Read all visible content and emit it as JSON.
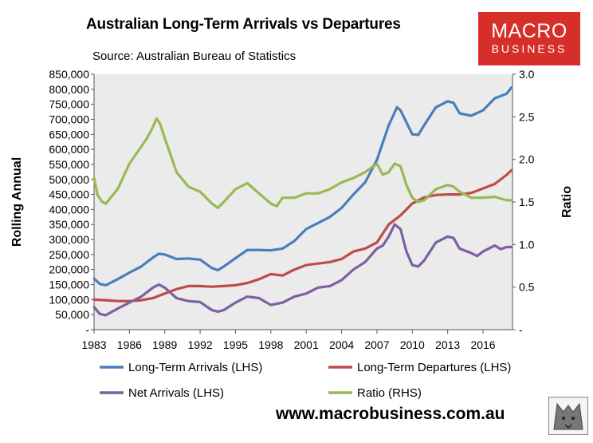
{
  "header": {
    "title": "Australian Long-Term Arrivals vs Departures",
    "subtitle": "Source: Australian Bureau of Statistics"
  },
  "logo": {
    "top": "MACRO",
    "bottom": "BUSINESS"
  },
  "footer": {
    "url": "www.macrobusiness.com.au"
  },
  "colors": {
    "arrivals": "#4a7ebb",
    "departures": "#be4b48",
    "net": "#7d60a0",
    "ratio": "#98b954",
    "plot_bg": "#ebebeb"
  },
  "chart_data": {
    "type": "line",
    "x_ticks": [
      "1983",
      "1986",
      "1989",
      "1992",
      "1995",
      "1998",
      "2001",
      "2004",
      "2007",
      "2010",
      "2013",
      "2016"
    ],
    "xlim": [
      1983,
      2018.5
    ],
    "ylabel": "Rolling Annual",
    "ylim": [
      0,
      850000
    ],
    "y_ticks": [
      "-",
      "50,000",
      "100,000",
      "150,000",
      "200,000",
      "250,000",
      "300,000",
      "350,000",
      "400,000",
      "450,000",
      "500,000",
      "550,000",
      "600,000",
      "650,000",
      "700,000",
      "750,000",
      "800,000",
      "850,000"
    ],
    "y2label": "Ratio",
    "y2lim": [
      0,
      3.0
    ],
    "y2_ticks": [
      "-",
      "0.5",
      "1.0",
      "1.5",
      "2.0",
      "2.5",
      "3.0"
    ],
    "legend": [
      "Long-Term Arrivals (LHS)",
      "Long-Term Departures (LHS)",
      "Net Arrivals (LHS)",
      "Ratio (RHS)"
    ],
    "series": [
      {
        "name": "Long-Term Arrivals (LHS)",
        "axis": "left",
        "x": [
          1983,
          1983.5,
          1984,
          1985,
          1986,
          1987,
          1988,
          1988.5,
          1989,
          1990,
          1991,
          1992,
          1993,
          1993.5,
          1994,
          1995,
          1996,
          1997,
          1998,
          1999,
          2000,
          2001,
          2002,
          2003,
          2004,
          2005,
          2006,
          2007,
          2008,
          2008.7,
          2009,
          2009.5,
          2010,
          2010.5,
          2011,
          2012,
          2013,
          2013.5,
          2014,
          2015,
          2016,
          2017,
          2018,
          2018.4
        ],
        "y": [
          170000,
          152000,
          148000,
          168000,
          190000,
          210000,
          240000,
          253000,
          250000,
          235000,
          237000,
          233000,
          205000,
          198000,
          210000,
          238000,
          265000,
          265000,
          264000,
          270000,
          295000,
          335000,
          355000,
          375000,
          405000,
          450000,
          490000,
          565000,
          680000,
          740000,
          730000,
          690000,
          650000,
          648000,
          680000,
          740000,
          760000,
          755000,
          720000,
          712000,
          730000,
          770000,
          785000,
          805000
        ]
      },
      {
        "name": "Long-Term Departures (LHS)",
        "axis": "left",
        "x": [
          1983,
          1984,
          1985,
          1986,
          1987,
          1988,
          1989,
          1990,
          1991,
          1992,
          1993,
          1994,
          1995,
          1996,
          1997,
          1998,
          1999,
          2000,
          2001,
          2002,
          2003,
          2004,
          2005,
          2006,
          2007,
          2008,
          2009,
          2010,
          2011,
          2012,
          2013,
          2014,
          2015,
          2016,
          2017,
          2018,
          2018.4
        ],
        "y": [
          100000,
          98000,
          95000,
          95000,
          98000,
          105000,
          120000,
          135000,
          145000,
          145000,
          143000,
          145000,
          148000,
          155000,
          168000,
          185000,
          180000,
          200000,
          215000,
          220000,
          225000,
          235000,
          260000,
          270000,
          290000,
          350000,
          380000,
          420000,
          440000,
          448000,
          450000,
          450000,
          455000,
          470000,
          485000,
          515000,
          530000
        ]
      },
      {
        "name": "Net Arrivals (LHS)",
        "axis": "left",
        "x": [
          1983,
          1983.5,
          1984,
          1985,
          1986,
          1987,
          1988,
          1988.5,
          1989,
          1990,
          1991,
          1992,
          1993,
          1993.5,
          1994,
          1995,
          1996,
          1997,
          1998,
          1999,
          2000,
          2001,
          2002,
          2003,
          2004,
          2005,
          2006,
          2007,
          2007.5,
          2008,
          2008.5,
          2009,
          2009.5,
          2010,
          2010.5,
          2011,
          2012,
          2013,
          2013.5,
          2014,
          2015,
          2015.5,
          2016,
          2017,
          2017.5,
          2018,
          2018.4
        ],
        "y": [
          75000,
          52000,
          48000,
          70000,
          90000,
          110000,
          140000,
          150000,
          140000,
          105000,
          95000,
          92000,
          65000,
          60000,
          65000,
          90000,
          110000,
          105000,
          82000,
          90000,
          110000,
          120000,
          140000,
          145000,
          165000,
          200000,
          225000,
          270000,
          280000,
          310000,
          350000,
          335000,
          260000,
          215000,
          210000,
          230000,
          290000,
          310000,
          305000,
          270000,
          255000,
          245000,
          260000,
          280000,
          268000,
          275000,
          275000
        ]
      },
      {
        "name": "Ratio (RHS)",
        "axis": "right",
        "x": [
          1983,
          1983.3,
          1983.7,
          1984,
          1985,
          1986,
          1987,
          1987.5,
          1988,
          1988.3,
          1988.6,
          1989,
          1990,
          1991,
          1992,
          1993,
          1993.5,
          1994,
          1995,
          1996,
          1997,
          1998,
          1998.5,
          1999,
          2000,
          2001,
          2002,
          2003,
          2004,
          2005,
          2006,
          2007,
          2007.5,
          2008,
          2008.5,
          2009,
          2009.5,
          2010,
          2010.5,
          2011,
          2012,
          2013,
          2013.5,
          2014,
          2015,
          2016,
          2017,
          2018,
          2018.4
        ],
        "y": [
          1.78,
          1.58,
          1.5,
          1.48,
          1.65,
          1.95,
          2.15,
          2.25,
          2.38,
          2.48,
          2.42,
          2.25,
          1.85,
          1.68,
          1.62,
          1.48,
          1.43,
          1.5,
          1.65,
          1.72,
          1.6,
          1.48,
          1.45,
          1.55,
          1.55,
          1.6,
          1.6,
          1.65,
          1.73,
          1.78,
          1.85,
          1.95,
          1.82,
          1.85,
          1.95,
          1.92,
          1.7,
          1.55,
          1.5,
          1.52,
          1.65,
          1.7,
          1.68,
          1.62,
          1.55,
          1.55,
          1.56,
          1.52,
          1.52
        ]
      }
    ]
  }
}
